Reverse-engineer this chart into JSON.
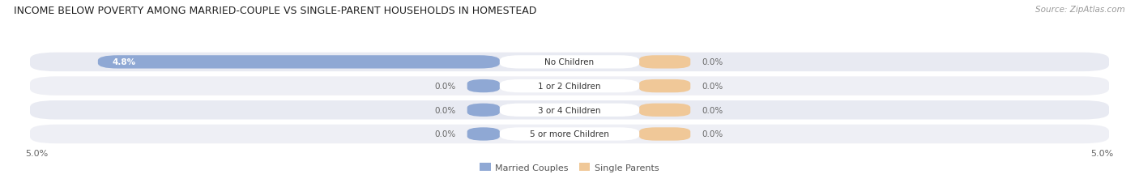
{
  "title": "INCOME BELOW POVERTY AMONG MARRIED-COUPLE VS SINGLE-PARENT HOUSEHOLDS IN HOMESTEAD",
  "source": "Source: ZipAtlas.com",
  "categories": [
    "No Children",
    "1 or 2 Children",
    "3 or 4 Children",
    "5 or more Children"
  ],
  "married_values": [
    4.8,
    0.0,
    0.0,
    0.0
  ],
  "single_values": [
    0.0,
    0.0,
    0.0,
    0.0
  ],
  "married_color": "#8fa8d4",
  "single_color": "#f0c898",
  "row_bg_color_even": "#e8eaf2",
  "row_bg_color_odd": "#eeeff5",
  "max_val": 5.0,
  "axis_label_left": "5.0%",
  "axis_label_right": "5.0%",
  "legend_married": "Married Couples",
  "legend_single": "Single Parents",
  "title_fontsize": 9.0,
  "source_fontsize": 7.5,
  "value_fontsize": 7.5,
  "category_fontsize": 7.5,
  "legend_fontsize": 8,
  "axis_tick_fontsize": 8,
  "fig_width": 14.06,
  "fig_height": 2.32,
  "fig_dpi": 100
}
